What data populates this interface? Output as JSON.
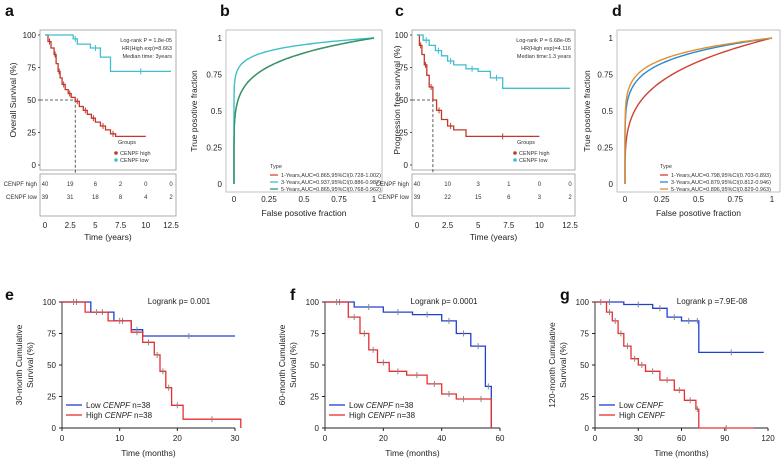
{
  "colors": {
    "high_km": "#c0392b",
    "low_km": "#3fbfcf",
    "high2": "#e53030",
    "low2": "#2040d0",
    "roc1": "#d84a2a",
    "roc3": "#3fbfc8",
    "roc5": "#2a9a70",
    "rocd1": "#d04030",
    "rocd3": "#2a8ad0",
    "rocd5": "#e09030"
  },
  "chart_data": [
    {
      "panel": "a",
      "type": "line",
      "title": "",
      "xlabel": "Time (years)",
      "ylabel": "Overall Survival (%)",
      "xlim": [
        0,
        12.5
      ],
      "ylim": [
        0,
        100
      ],
      "xticks": [
        "0",
        "2.5",
        "5",
        "7.5",
        "10",
        "12.5"
      ],
      "yticks": [
        "0",
        "25",
        "50",
        "75",
        "100"
      ],
      "annotation": [
        "Log-rank P = 1.8e-05",
        "HR(High exp)=8.663",
        "Median time: 3years"
      ],
      "legend_title": "Groups",
      "series": [
        {
          "name": "CENPF high",
          "x": [
            0,
            0.3,
            0.6,
            0.9,
            1.1,
            1.3,
            1.5,
            1.7,
            2.0,
            2.3,
            2.6,
            3.0,
            3.4,
            3.8,
            4.2,
            4.6,
            5.0,
            5.5,
            6.0,
            6.5,
            7.0,
            10
          ],
          "y": [
            100,
            95,
            90,
            85,
            78,
            72,
            67,
            62,
            58,
            55,
            52,
            49,
            45,
            42,
            39,
            36,
            33,
            30,
            27,
            24,
            22,
            22
          ]
        },
        {
          "name": "CENPF low",
          "x": [
            0,
            2.8,
            3.2,
            4.5,
            5.5,
            6.5,
            12.5
          ],
          "y": [
            100,
            97,
            93,
            90,
            83,
            72,
            72
          ]
        }
      ],
      "median_line": {
        "x": 3,
        "y": 50
      },
      "risk_table": {
        "times": [
          "0",
          "2.5",
          "5",
          "7.5",
          "10",
          "12.5"
        ],
        "rows": [
          {
            "name": "CENPF high",
            "values": [
              "40",
              "19",
              "6",
              "2",
              "0",
              "0"
            ]
          },
          {
            "name": "CENPF low",
            "values": [
              "39",
              "31",
              "18",
              "8",
              "4",
              "2"
            ]
          }
        ]
      }
    },
    {
      "panel": "b",
      "type": "line",
      "xlabel": "False posotive fraction",
      "ylabel": "True posotive fraction",
      "xlim": [
        0,
        1
      ],
      "ylim": [
        0,
        1
      ],
      "xticks": [
        "0",
        "0.25",
        "0.5",
        "0.75",
        "1"
      ],
      "yticks": [
        "0",
        "0.25",
        "0.5",
        "0.75",
        "1"
      ],
      "legend_title": "Type",
      "series": [
        {
          "name": "1-Years,AUC=0.865,95%CI(0.728-1.002)",
          "auc": 0.865
        },
        {
          "name": "3-Years,AUC=0.937,95%CI(0.886-0.987)",
          "auc": 0.937
        },
        {
          "name": "5-Years,AUC=0.865,95%CI(0.768-0.962)",
          "auc": 0.865
        }
      ]
    },
    {
      "panel": "c",
      "type": "line",
      "xlabel": "Time (years)",
      "ylabel": "Progression free survival (%)",
      "xlim": [
        0,
        12.5
      ],
      "ylim": [
        0,
        100
      ],
      "xticks": [
        "0",
        "2.5",
        "5",
        "7.5",
        "10",
        "12.5"
      ],
      "yticks": [
        "0",
        "25",
        "50",
        "75",
        "100"
      ],
      "annotation": [
        "Log-rank P = 6.68e-05",
        "HR(High exp)=4.116",
        "Median time:1.3 years"
      ],
      "legend_title": "Groups",
      "series": [
        {
          "name": "CENPF high",
          "x": [
            0,
            0.2,
            0.4,
            0.6,
            0.8,
            1.0,
            1.3,
            1.6,
            2.0,
            2.5,
            3.0,
            4.0,
            10
          ],
          "y": [
            100,
            92,
            85,
            77,
            69,
            60,
            50,
            42,
            35,
            30,
            27,
            22,
            22
          ]
        },
        {
          "name": "CENPF low",
          "x": [
            0,
            0.5,
            1.0,
            1.5,
            2.0,
            2.5,
            3.0,
            4.0,
            5.0,
            6.0,
            7.0,
            12.5
          ],
          "y": [
            100,
            96,
            92,
            88,
            84,
            80,
            77,
            74,
            72,
            67,
            59,
            59
          ]
        }
      ],
      "median_line": {
        "x": 1.3,
        "y": 50
      },
      "risk_table": {
        "times": [
          "0",
          "2.5",
          "5",
          "7.5",
          "10",
          "12.5"
        ],
        "rows": [
          {
            "name": "CENPF high",
            "values": [
              "40",
              "10",
              "3",
              "1",
              "0",
              "0"
            ]
          },
          {
            "name": "CENPF low",
            "values": [
              "39",
              "22",
              "15",
              "6",
              "3",
              "2"
            ]
          }
        ]
      }
    },
    {
      "panel": "d",
      "type": "line",
      "xlabel": "False posotive fraction",
      "ylabel": "True posotive fraction",
      "xlim": [
        0,
        1
      ],
      "ylim": [
        0,
        1
      ],
      "xticks": [
        "0",
        "0.25",
        "0.5",
        "0.75",
        "1"
      ],
      "yticks": [
        "0",
        "0.25",
        "0.5",
        "0.75",
        "1"
      ],
      "legend_title": "Type",
      "series": [
        {
          "name": "1-Years,AUC=0.798,95%CI(0.703-0.893)",
          "auc": 0.798
        },
        {
          "name": "3-Years,AUC=0.879,95%CI(0.812-0.946)",
          "auc": 0.879
        },
        {
          "name": "5-Years,AUC=0.896,95%CI(0.829-0.963)",
          "auc": 0.896
        }
      ]
    },
    {
      "panel": "e",
      "type": "line",
      "xlabel": "Time (months)",
      "ylabel": "30-month Cumulative Survival (%)",
      "ylabel_lines": [
        "30-month Cumulative",
        "Survival (%)"
      ],
      "xlim": [
        0,
        30
      ],
      "ylim": [
        0,
        100
      ],
      "xticks": [
        "0",
        "10",
        "20",
        "30"
      ],
      "yticks": [
        "0",
        "25",
        "50",
        "75",
        "100"
      ],
      "annotation": "Logrank p= 0.001",
      "legend": [
        {
          "prefix": "Low ",
          "gene": "CENPF",
          "suffix": "  n=38"
        },
        {
          "prefix": "High ",
          "gene": "CENPF",
          "suffix": "  n=38"
        }
      ],
      "series": [
        {
          "name": "Low CENPF",
          "x": [
            0,
            5,
            9,
            12,
            14,
            30
          ],
          "y": [
            100,
            92,
            85,
            78,
            73,
            73
          ]
        },
        {
          "name": "High CENPF",
          "x": [
            0,
            4,
            8,
            12,
            14,
            16,
            17,
            18,
            19,
            21,
            31
          ],
          "y": [
            100,
            92,
            85,
            76,
            68,
            58,
            45,
            32,
            18,
            7,
            0
          ]
        }
      ]
    },
    {
      "panel": "f",
      "type": "line",
      "xlabel": "Time (months)",
      "ylabel": "60-month Cumulative Survival (%)",
      "ylabel_lines": [
        "60-month Cumulative",
        "Survival (%)"
      ],
      "xlim": [
        0,
        60
      ],
      "ylim": [
        0,
        100
      ],
      "xticks": [
        "0",
        "20",
        "40",
        "60"
      ],
      "yticks": [
        "0",
        "25",
        "50",
        "75",
        "100"
      ],
      "annotation": "Logrank p= 0.0001",
      "legend": [
        {
          "prefix": "Low ",
          "gene": "CENPF",
          "suffix": "  n=38"
        },
        {
          "prefix": "High ",
          "gene": "CENPF",
          "suffix": "  n=38"
        }
      ],
      "series": [
        {
          "name": "Low CENPF",
          "x": [
            0,
            10,
            20,
            30,
            40,
            45,
            50,
            55,
            57
          ],
          "y": [
            100,
            96,
            92,
            90,
            85,
            75,
            65,
            33,
            0
          ]
        },
        {
          "name": "High CENPF",
          "x": [
            0,
            8,
            12,
            15,
            18,
            22,
            28,
            35,
            40,
            45,
            50,
            57
          ],
          "y": [
            100,
            88,
            75,
            62,
            52,
            45,
            42,
            35,
            27,
            23,
            23,
            0
          ]
        }
      ]
    },
    {
      "panel": "g",
      "type": "line",
      "xlabel": "Time (months)",
      "ylabel": "120-month Cumulative Survival (%)",
      "ylabel_lines": [
        "120-month Cumulative",
        "Survival (%)"
      ],
      "xlim": [
        0,
        120
      ],
      "ylim": [
        0,
        100
      ],
      "xticks": [
        "0",
        "30",
        "60",
        "90",
        "120"
      ],
      "yticks": [
        "0",
        "25",
        "50",
        "75",
        "100"
      ],
      "annotation": "Logrank p =7.9E-08",
      "legend": [
        {
          "prefix": "Low ",
          "gene": "CENPF",
          "suffix": ""
        },
        {
          "prefix": "High ",
          "gene": "CENPF",
          "suffix": ""
        }
      ],
      "series": [
        {
          "name": "Low CENPF",
          "x": [
            0,
            20,
            40,
            50,
            60,
            70,
            72,
            117
          ],
          "y": [
            100,
            98,
            95,
            88,
            85,
            85,
            60,
            60
          ]
        },
        {
          "name": "High CENPF",
          "x": [
            0,
            8,
            12,
            16,
            20,
            25,
            30,
            35,
            45,
            55,
            62,
            70,
            72,
            110
          ],
          "y": [
            100,
            92,
            85,
            75,
            65,
            55,
            50,
            45,
            38,
            30,
            22,
            15,
            0,
            0
          ]
        }
      ]
    }
  ]
}
